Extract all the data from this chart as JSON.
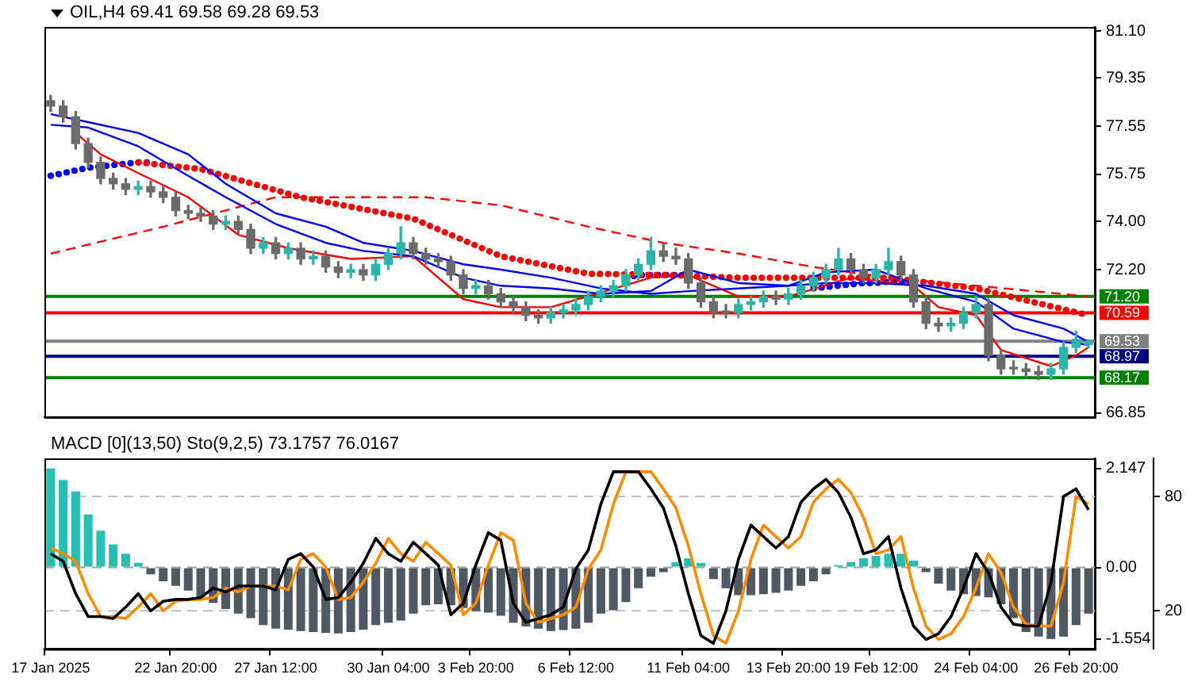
{
  "chart_data": [
    {
      "type": "candlestick",
      "title": "OIL,H4 69.41 69.58 69.28 69.53",
      "categories": [
        null,
        null,
        null,
        null,
        null,
        null,
        null,
        null,
        null,
        null,
        null,
        null,
        null,
        null,
        null,
        null,
        null,
        null,
        null,
        null,
        null,
        null,
        null,
        null,
        null,
        null,
        null,
        null,
        null,
        null,
        null,
        null,
        null,
        null,
        null,
        null,
        null,
        null,
        null,
        null,
        null,
        null,
        null,
        null,
        null,
        null,
        null,
        null,
        null,
        null,
        null,
        null,
        null,
        null,
        null,
        null,
        null,
        null,
        null,
        null,
        null,
        null,
        null,
        null,
        null,
        null,
        null,
        null,
        null,
        null,
        null,
        null,
        null,
        null,
        null,
        null,
        null,
        null,
        null,
        null,
        null,
        null,
        null,
        null
      ],
      "ohlc": [
        [
          78.5,
          78.7,
          78.1,
          78.3
        ],
        [
          78.3,
          78.5,
          77.7,
          77.9
        ],
        [
          77.9,
          78.1,
          76.7,
          76.9
        ],
        [
          76.9,
          77.1,
          76.0,
          76.2
        ],
        [
          76.2,
          76.4,
          75.4,
          75.6
        ],
        [
          75.6,
          75.8,
          75.2,
          75.4
        ],
        [
          75.4,
          75.6,
          75.0,
          75.2
        ],
        [
          75.2,
          75.5,
          75.0,
          75.3
        ],
        [
          75.3,
          75.5,
          74.9,
          75.1
        ],
        [
          75.1,
          75.3,
          74.7,
          74.9
        ],
        [
          74.9,
          75.1,
          74.2,
          74.4
        ],
        [
          74.4,
          74.6,
          74.1,
          74.3
        ],
        [
          74.3,
          74.5,
          74.0,
          74.2
        ],
        [
          74.2,
          74.4,
          73.7,
          73.9
        ],
        [
          73.9,
          74.2,
          73.7,
          74.0
        ],
        [
          74.0,
          74.2,
          73.5,
          73.7
        ],
        [
          73.7,
          73.9,
          72.8,
          73.0
        ],
        [
          73.0,
          73.4,
          72.8,
          73.2
        ],
        [
          73.2,
          73.4,
          72.6,
          72.8
        ],
        [
          72.8,
          73.2,
          72.6,
          73.0
        ],
        [
          73.0,
          73.2,
          72.4,
          72.6
        ],
        [
          72.6,
          72.9,
          72.4,
          72.7
        ],
        [
          72.7,
          72.9,
          72.1,
          72.3
        ],
        [
          72.3,
          72.5,
          71.9,
          72.1
        ],
        [
          72.1,
          72.4,
          71.9,
          72.2
        ],
        [
          72.2,
          72.4,
          71.8,
          72.0
        ],
        [
          72.0,
          72.6,
          71.8,
          72.4
        ],
        [
          72.4,
          73.0,
          72.2,
          72.8
        ],
        [
          72.8,
          73.8,
          72.6,
          73.2
        ],
        [
          73.2,
          73.4,
          72.6,
          72.8
        ],
        [
          72.8,
          73.0,
          72.4,
          72.6
        ],
        [
          72.6,
          72.8,
          72.3,
          72.5
        ],
        [
          72.5,
          72.7,
          71.8,
          72.0
        ],
        [
          72.0,
          72.2,
          71.3,
          71.5
        ],
        [
          71.5,
          71.8,
          71.3,
          71.6
        ],
        [
          71.6,
          71.8,
          71.1,
          71.3
        ],
        [
          71.3,
          71.5,
          70.8,
          71.0
        ],
        [
          71.0,
          71.2,
          70.6,
          70.8
        ],
        [
          70.8,
          71.0,
          70.3,
          70.5
        ],
        [
          70.5,
          70.7,
          70.2,
          70.4
        ],
        [
          70.4,
          70.8,
          70.2,
          70.6
        ],
        [
          70.6,
          70.9,
          70.4,
          70.7
        ],
        [
          70.7,
          71.1,
          70.5,
          70.9
        ],
        [
          70.9,
          71.4,
          70.7,
          71.2
        ],
        [
          71.2,
          71.6,
          71.0,
          71.4
        ],
        [
          71.4,
          71.8,
          71.2,
          71.6
        ],
        [
          71.6,
          72.2,
          71.4,
          72.0
        ],
        [
          72.0,
          72.6,
          71.8,
          72.4
        ],
        [
          72.4,
          73.4,
          72.2,
          72.9
        ],
        [
          72.9,
          73.2,
          72.5,
          72.7
        ],
        [
          72.7,
          73.0,
          72.4,
          72.6
        ],
        [
          72.6,
          72.8,
          71.5,
          71.7
        ],
        [
          71.7,
          71.9,
          70.8,
          71.0
        ],
        [
          71.0,
          71.2,
          70.4,
          70.6
        ],
        [
          70.6,
          70.9,
          70.4,
          70.6
        ],
        [
          70.6,
          71.1,
          70.4,
          70.9
        ],
        [
          70.9,
          71.2,
          70.7,
          71.0
        ],
        [
          71.0,
          71.4,
          70.8,
          71.2
        ],
        [
          71.2,
          71.4,
          70.9,
          71.1
        ],
        [
          71.1,
          71.5,
          70.9,
          71.3
        ],
        [
          71.3,
          71.8,
          71.1,
          71.6
        ],
        [
          71.6,
          72.1,
          71.4,
          71.9
        ],
        [
          71.9,
          72.4,
          71.7,
          72.2
        ],
        [
          72.2,
          73.0,
          72.0,
          72.6
        ],
        [
          72.6,
          72.8,
          72.0,
          72.2
        ],
        [
          72.2,
          72.4,
          71.7,
          71.9
        ],
        [
          71.9,
          72.4,
          71.7,
          72.2
        ],
        [
          72.2,
          73.0,
          72.0,
          72.5
        ],
        [
          72.5,
          72.7,
          71.8,
          72.0
        ],
        [
          72.0,
          72.2,
          70.8,
          71.0
        ],
        [
          71.0,
          71.2,
          70.0,
          70.2
        ],
        [
          70.2,
          70.4,
          69.9,
          70.1
        ],
        [
          70.1,
          70.4,
          69.9,
          70.2
        ],
        [
          70.2,
          70.8,
          70.0,
          70.6
        ],
        [
          70.6,
          71.2,
          70.4,
          70.9
        ],
        [
          70.9,
          71.1,
          68.8,
          69.0
        ],
        [
          69.0,
          69.2,
          68.3,
          68.5
        ],
        [
          68.5,
          68.8,
          68.3,
          68.5
        ],
        [
          68.5,
          68.7,
          68.2,
          68.4
        ],
        [
          68.4,
          68.6,
          68.1,
          68.3
        ],
        [
          68.3,
          68.7,
          68.1,
          68.5
        ],
        [
          68.5,
          69.5,
          68.3,
          69.3
        ],
        [
          69.3,
          69.9,
          69.1,
          69.6
        ],
        [
          69.41,
          69.58,
          69.28,
          69.53
        ]
      ],
      "colors": [
        "#6b6b6b",
        "#6b6b6b",
        "#6b6b6b",
        "#6b6b6b",
        "#6b6b6b",
        "#6b6b6b",
        "#6b6b6b",
        "#2bb5a8",
        "#6b6b6b",
        "#6b6b6b",
        "#6b6b6b",
        "#6b6b6b",
        "#6b6b6b",
        "#6b6b6b",
        "#2bb5a8",
        "#6b6b6b",
        "#6b6b6b",
        "#2bb5a8",
        "#6b6b6b",
        "#2bb5a8",
        "#6b6b6b",
        "#2bb5a8",
        "#6b6b6b",
        "#6b6b6b",
        "#2bb5a8",
        "#6b6b6b",
        "#2bb5a8",
        "#2bb5a8",
        "#2bb5a8",
        "#6b6b6b",
        "#6b6b6b",
        "#6b6b6b",
        "#6b6b6b",
        "#6b6b6b",
        "#2bb5a8",
        "#6b6b6b",
        "#6b6b6b",
        "#6b6b6b",
        "#6b6b6b",
        "#6b6b6b",
        "#2bb5a8",
        "#2bb5a8",
        "#2bb5a8",
        "#2bb5a8",
        "#2bb5a8",
        "#2bb5a8",
        "#2bb5a8",
        "#2bb5a8",
        "#2bb5a8",
        "#6b6b6b",
        "#6b6b6b",
        "#6b6b6b",
        "#6b6b6b",
        "#6b6b6b",
        "#6b6b6b",
        "#2bb5a8",
        "#2bb5a8",
        "#2bb5a8",
        "#6b6b6b",
        "#2bb5a8",
        "#2bb5a8",
        "#2bb5a8",
        "#2bb5a8",
        "#2bb5a8",
        "#6b6b6b",
        "#6b6b6b",
        "#2bb5a8",
        "#2bb5a8",
        "#6b6b6b",
        "#6b6b6b",
        "#6b6b6b",
        "#6b6b6b",
        "#2bb5a8",
        "#2bb5a8",
        "#2bb5a8",
        "#6b6b6b",
        "#6b6b6b",
        "#6b6b6b",
        "#6b6b6b",
        "#6b6b6b",
        "#2bb5a8",
        "#2bb5a8",
        "#2bb5a8",
        "#2bb5a8"
      ],
      "series": [
        {
          "type": "line",
          "color": "#0000ff",
          "line_style": "solid",
          "values": [
            77.6,
            null,
            null,
            77.5,
            null,
            null,
            null,
            76.8,
            null,
            null,
            null,
            75.7,
            null,
            null,
            74.9,
            null,
            null,
            null,
            73.9,
            null,
            null,
            null,
            73.2,
            null,
            null,
            72.9,
            null,
            null,
            null,
            72.7,
            null,
            null,
            null,
            71.9,
            null,
            null,
            71.6,
            null,
            null,
            null,
            71.5,
            null,
            null,
            null,
            71.3,
            null,
            null,
            null,
            71.4,
            null,
            null,
            72.2,
            null,
            null,
            null,
            71.7,
            null,
            null,
            null,
            71.6,
            null,
            null,
            72.1,
            null,
            null,
            null,
            72.2,
            null,
            null,
            null,
            71.5,
            null,
            null,
            null,
            71.0,
            null,
            null,
            70.0,
            null,
            null,
            null,
            69.5,
            null,
            69.4
          ]
        },
        {
          "type": "line",
          "color": "#0000ff",
          "line_style": "solid",
          "values": [
            78.0,
            null,
            null,
            77.7,
            null,
            null,
            null,
            77.3,
            null,
            null,
            null,
            76.5,
            null,
            null,
            75.4,
            null,
            null,
            null,
            74.3,
            null,
            null,
            null,
            73.8,
            null,
            null,
            73.2,
            null,
            null,
            null,
            72.9,
            null,
            null,
            null,
            72.4,
            null,
            null,
            72.2,
            null,
            null,
            null,
            71.9,
            null,
            null,
            null,
            71.5,
            null,
            null,
            null,
            71.3,
            null,
            null,
            71.4,
            null,
            null,
            null,
            71.5,
            null,
            null,
            null,
            71.6,
            null,
            null,
            71.7,
            null,
            null,
            null,
            71.7,
            null,
            null,
            null,
            71.6,
            null,
            null,
            null,
            71.3,
            null,
            null,
            70.5,
            null,
            null,
            null,
            70.0,
            null,
            69.5
          ]
        },
        {
          "type": "line",
          "color": "#ff0000",
          "line_style": "solid",
          "values": [
            null,
            null,
            77.3,
            null,
            76.5,
            null,
            null,
            75.8,
            null,
            null,
            null,
            74.9,
            null,
            null,
            null,
            73.5,
            null,
            null,
            null,
            73.0,
            null,
            null,
            null,
            null,
            72.6,
            null,
            null,
            null,
            null,
            72.7,
            null,
            null,
            null,
            71.1,
            null,
            null,
            70.8,
            null,
            null,
            null,
            70.8,
            null,
            null,
            null,
            71.35,
            null,
            null,
            null,
            71.9,
            null,
            null,
            72.0,
            null,
            null,
            null,
            71.2,
            null,
            null,
            null,
            71.2,
            null,
            null,
            null,
            null,
            71.9,
            null,
            null,
            null,
            null,
            71.6,
            null,
            70.8,
            null,
            null,
            70.5,
            null,
            69.2,
            null,
            null,
            null,
            68.6,
            null,
            69.0,
            69.3
          ]
        },
        {
          "type": "line",
          "color": "#ff0000",
          "line_style": "dashed",
          "values": [
            72.8,
            null,
            null,
            null,
            null,
            null,
            null,
            null,
            null,
            73.8,
            null,
            null,
            null,
            null,
            null,
            null,
            null,
            null,
            74.9,
            null,
            null,
            null,
            null,
            null,
            74.9,
            null,
            null,
            null,
            null,
            null,
            74.9,
            null,
            null,
            null,
            null,
            null,
            74.6,
            null,
            null,
            null,
            null,
            null,
            null,
            73.8,
            null,
            null,
            null,
            null,
            null,
            73.2,
            null,
            null,
            null,
            null,
            null,
            72.8,
            null,
            null,
            null,
            null,
            null,
            72.3,
            null,
            null,
            null,
            null,
            null,
            71.9,
            null,
            null,
            null,
            null,
            null,
            null,
            71.6,
            null,
            null,
            null,
            null,
            null,
            null,
            null,
            null,
            71.2
          ]
        },
        {
          "type": "line",
          "color": "#ff0000",
          "line_style": "dotted",
          "values": [
            null,
            null,
            null,
            null,
            null,
            null,
            null,
            76.2,
            null,
            null,
            null,
            null,
            75.95,
            null,
            null,
            null,
            null,
            null,
            null,
            null,
            74.9,
            null,
            null,
            null,
            null,
            null,
            null,
            null,
            null,
            74.1,
            null,
            null,
            null,
            null,
            null,
            null,
            72.7,
            null,
            null,
            null,
            null,
            null,
            null,
            72.05,
            null,
            null,
            null,
            null,
            null,
            72.0,
            null,
            null,
            null,
            null,
            null,
            71.9,
            null,
            null,
            null,
            null,
            null,
            71.9,
            null,
            null,
            null,
            null,
            null,
            71.9,
            null,
            null,
            null,
            null,
            null,
            null,
            71.5,
            null,
            null,
            null,
            null,
            null,
            null,
            null,
            null,
            70.5
          ]
        },
        {
          "type": "line",
          "color": "#0000ff",
          "line_style": "dotted",
          "values": [
            75.7,
            75.8,
            75.9,
            76.0,
            76.05,
            76.1,
            76.15,
            76.2,
            76.2,
            null,
            null,
            null,
            null,
            null,
            null,
            null,
            null,
            null,
            null,
            null,
            null,
            null,
            null,
            null,
            null,
            null,
            null,
            null,
            null,
            null,
            null,
            null,
            null,
            null,
            null,
            null,
            null,
            null,
            null,
            null,
            null,
            null,
            null,
            null,
            null,
            null,
            null,
            null,
            null,
            null,
            null,
            null,
            null,
            null,
            null,
            null,
            null,
            null,
            null,
            null,
            null,
            null,
            null,
            null,
            null,
            null,
            null,
            null,
            null,
            null,
            null,
            null,
            null,
            null,
            null,
            null,
            null,
            null,
            null,
            null,
            null,
            null,
            null,
            null
          ]
        },
        {
          "type": "line",
          "color": "#0000ff",
          "line_style": "dotted",
          "values": [
            null,
            null,
            null,
            null,
            null,
            null,
            null,
            null,
            null,
            null,
            null,
            null,
            null,
            null,
            null,
            null,
            null,
            null,
            null,
            null,
            null,
            null,
            null,
            null,
            null,
            null,
            null,
            null,
            null,
            null,
            null,
            null,
            null,
            null,
            null,
            null,
            null,
            null,
            null,
            null,
            null,
            null,
            null,
            null,
            null,
            null,
            71.9,
            72.0,
            72.0,
            72.0,
            72.0,
            72.0,
            null,
            null,
            null,
            null,
            null,
            null,
            null,
            null,
            null,
            null,
            null,
            null,
            null,
            null,
            null,
            null,
            null,
            null,
            null,
            null,
            null,
            null,
            null,
            null,
            null,
            null,
            null,
            null,
            null,
            null,
            null,
            null
          ]
        },
        {
          "type": "line",
          "color": "#0000ff",
          "line_style": "dotted",
          "values": [
            null,
            null,
            null,
            null,
            null,
            null,
            null,
            null,
            null,
            null,
            null,
            null,
            null,
            null,
            null,
            null,
            null,
            null,
            null,
            null,
            null,
            null,
            null,
            null,
            null,
            null,
            null,
            null,
            null,
            null,
            null,
            null,
            null,
            null,
            null,
            null,
            null,
            null,
            null,
            null,
            null,
            null,
            null,
            null,
            null,
            null,
            null,
            null,
            null,
            null,
            null,
            null,
            null,
            null,
            null,
            null,
            null,
            null,
            null,
            null,
            null,
            71.5,
            71.55,
            71.6,
            71.65,
            71.7,
            71.7,
            71.75,
            71.75,
            71.7,
            null,
            null,
            null,
            null,
            null,
            null,
            null,
            null,
            null,
            null,
            null,
            null,
            null,
            null
          ]
        }
      ],
      "ylim": [
        66.7,
        81.25
      ],
      "yticks": [
        66.85,
        {
          "value": 72.2,
          "label": "72.20"
        },
        {
          "value": 74,
          "label": "74.00"
        },
        75.75,
        77.55,
        79.35,
        {
          "value": 81.1,
          "label": "81.10"
        }
      ],
      "ref_lines": [
        {
          "axis": "y",
          "value": 71.2,
          "label": "71.20",
          "color": "#008000"
        },
        {
          "axis": "y",
          "value": 70.59,
          "label": "70.59",
          "color": "#ff0000"
        },
        {
          "axis": "y",
          "value": 69.53,
          "label": "69.53",
          "color": "#808080"
        },
        {
          "axis": "y",
          "value": 68.97,
          "label": "68.97",
          "color": "#000080"
        },
        {
          "axis": "y",
          "value": 68.17,
          "label": "68.17",
          "color": "#008000"
        }
      ],
      "tick_labels": "y"
    },
    {
      "type": "bar",
      "title": "MACD [0](13,50) Sto(9,2,5) 73.1757 76.0167",
      "categories": [
        "17 Jan 2025",
        null,
        null,
        null,
        null,
        null,
        null,
        null,
        null,
        null,
        "22 Jan 20:00",
        null,
        null,
        null,
        null,
        null,
        null,
        null,
        "27 Jan 12:00",
        null,
        null,
        null,
        null,
        null,
        null,
        null,
        null,
        "30 Jan 04:00",
        null,
        null,
        null,
        null,
        null,
        null,
        "3 Feb 20:00",
        null,
        null,
        null,
        null,
        null,
        null,
        null,
        "6 Feb 12:00",
        null,
        null,
        null,
        null,
        null,
        null,
        null,
        null,
        "11 Feb 04:00",
        null,
        null,
        null,
        null,
        null,
        null,
        null,
        "13 Feb 20:00",
        null,
        null,
        null,
        null,
        null,
        null,
        "19 Feb 12:00",
        null,
        null,
        null,
        null,
        null,
        null,
        null,
        "24 Feb 04:00",
        null,
        null,
        null,
        null,
        null,
        null,
        null,
        "26 Feb 20:00",
        null
      ],
      "series": [
        {
          "type": "bar",
          "values": [
            2.15,
            1.9,
            1.65,
            1.15,
            0.8,
            0.5,
            0.3,
            0.1,
            -0.15,
            -0.3,
            -0.4,
            -0.5,
            -0.65,
            -0.77,
            -0.9,
            -1.0,
            -1.1,
            -1.25,
            -1.33,
            -1.35,
            -1.38,
            -1.4,
            -1.42,
            -1.43,
            -1.4,
            -1.35,
            -1.25,
            -1.2,
            -1.15,
            -1.0,
            -0.82,
            -0.8,
            -0.82,
            -0.88,
            -0.95,
            -0.98,
            -1.05,
            -1.2,
            -1.28,
            -1.33,
            -1.38,
            -1.36,
            -1.33,
            -1.2,
            -1.0,
            -0.93,
            -0.75,
            -0.45,
            -0.2,
            -0.1,
            0.12,
            0.2,
            0.1,
            -0.25,
            -0.45,
            -0.6,
            -0.6,
            -0.58,
            -0.55,
            -0.5,
            -0.4,
            -0.3,
            -0.15,
            0.05,
            0.12,
            0.2,
            0.25,
            0.3,
            0.3,
            0.15,
            -0.1,
            -0.35,
            -0.5,
            -0.58,
            -0.62,
            -0.65,
            -0.8,
            -1.1,
            -1.4,
            -1.5,
            -1.55,
            -1.5,
            -1.25,
            -1.0
          ],
          "colors": [
            "#26bfb4",
            "#26bfb4",
            "#26bfb4",
            "#26bfb4",
            "#26bfb4",
            "#26bfb4",
            "#26bfb4",
            "#26bfb4",
            "#505864",
            "#505864",
            "#505864",
            "#505864",
            "#505864",
            "#505864",
            "#505864",
            "#505864",
            "#505864",
            "#505864",
            "#505864",
            "#505864",
            "#505864",
            "#505864",
            "#505864",
            "#505864",
            "#505864",
            "#505864",
            "#505864",
            "#505864",
            "#505864",
            "#505864",
            "#505864",
            "#505864",
            "#505864",
            "#505864",
            "#505864",
            "#505864",
            "#505864",
            "#505864",
            "#505864",
            "#505864",
            "#505864",
            "#505864",
            "#505864",
            "#505864",
            "#505864",
            "#505864",
            "#505864",
            "#505864",
            "#505864",
            "#505864",
            "#26bfb4",
            "#26bfb4",
            "#26bfb4",
            "#505864",
            "#505864",
            "#505864",
            "#505864",
            "#505864",
            "#505864",
            "#505864",
            "#505864",
            "#505864",
            "#505864",
            "#26bfb4",
            "#26bfb4",
            "#26bfb4",
            "#26bfb4",
            "#26bfb4",
            "#26bfb4",
            "#26bfb4",
            "#505864",
            "#505864",
            "#505864",
            "#505864",
            "#505864",
            "#505864",
            "#505864",
            "#505864",
            "#505864",
            "#505864",
            "#505864",
            "#505864",
            "#505864",
            "#505864"
          ]
        },
        {
          "type": "line",
          "axis": "y2",
          "color": "#000000",
          "line_style": "solid",
          "values": [
            50,
            46,
            29,
            17,
            17,
            16,
            22,
            29,
            20,
            25,
            26,
            26,
            27,
            32,
            30,
            33,
            33,
            33,
            31,
            47,
            50,
            43,
            26,
            27,
            35,
            45,
            58,
            50,
            46,
            56,
            50,
            44,
            18,
            24,
            44,
            61,
            57,
            24,
            14,
            16,
            18,
            22,
            42,
            52,
            76,
            93,
            93,
            93,
            84,
            74,
            54,
            29,
            7,
            3,
            20,
            47,
            65,
            59,
            53,
            59,
            77,
            84,
            89,
            82,
            69,
            50,
            52,
            59,
            32,
            12,
            5,
            8,
            17,
            32,
            50,
            40,
            22,
            13,
            12,
            12,
            35,
            80,
            84,
            73
          ]
        },
        {
          "type": "line",
          "axis": "y2",
          "color": "#ff8c00",
          "line_style": "solid",
          "values": [
            53,
            50,
            46,
            29,
            17,
            17,
            16,
            22,
            29,
            20,
            25,
            26,
            26,
            27,
            32,
            30,
            33,
            33,
            33,
            31,
            47,
            50,
            43,
            26,
            27,
            35,
            45,
            58,
            50,
            46,
            56,
            50,
            44,
            18,
            24,
            44,
            61,
            57,
            24,
            14,
            16,
            18,
            22,
            42,
            52,
            76,
            93,
            93,
            93,
            84,
            74,
            54,
            29,
            7,
            3,
            20,
            47,
            65,
            59,
            53,
            59,
            77,
            84,
            89,
            82,
            69,
            50,
            52,
            59,
            32,
            12,
            5,
            8,
            17,
            32,
            50,
            40,
            22,
            13,
            12,
            12,
            35,
            80,
            76
          ]
        }
      ],
      "ylim": [
        -1.77,
        2.37
      ],
      "yticks": [
        -1.554,
        {
          "value": 0,
          "label": "0.00"
        },
        2.147
      ],
      "y2lim": [
        0,
        100
      ],
      "y2ticks": [
        20,
        80
      ],
      "ref_lines": [
        {
          "axis": "y",
          "value": 0,
          "color": "#a0a0a0",
          "line_style": "dashed"
        },
        {
          "axis": "y2",
          "value": 80,
          "color": "#c0c0c0",
          "line_style": "dashed"
        },
        {
          "axis": "y2",
          "value": 20,
          "color": "#c0c0c0",
          "line_style": "dashed"
        }
      ]
    }
  ]
}
